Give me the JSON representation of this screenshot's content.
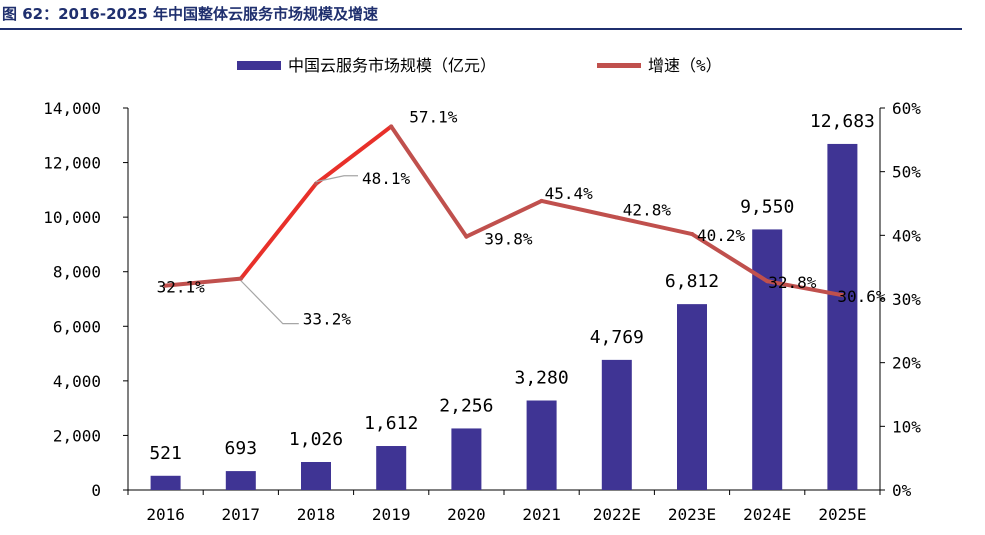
{
  "title": "图 62：2016-2025 年中国整体云服务市场规模及增速",
  "colors": {
    "bar": "#3f3494",
    "line": "#c0504d",
    "line_highlight": "#e8302a",
    "title": "#1f2f6e",
    "axis": "#000000",
    "leader": "#a6a6a6"
  },
  "chart_data": {
    "type": "bar+line",
    "categories": [
      "2016",
      "2017",
      "2018",
      "2019",
      "2020",
      "2021",
      "2022E",
      "2023E",
      "2024E",
      "2025E"
    ],
    "series": [
      {
        "name": "中国云服务市场规模（亿元）",
        "type": "bar",
        "axis": "left",
        "values": [
          521,
          693,
          1026,
          1612,
          2256,
          3280,
          4769,
          6812,
          9550,
          12683
        ],
        "labels": [
          "521",
          "693",
          "1,026",
          "1,612",
          "2,256",
          "3,280",
          "4,769",
          "6,812",
          "9,550",
          "12,683"
        ]
      },
      {
        "name": "增速（%）",
        "type": "line",
        "axis": "right",
        "values": [
          32.1,
          33.2,
          48.1,
          57.1,
          39.8,
          45.4,
          42.8,
          40.2,
          32.8,
          30.6
        ],
        "labels": [
          "32.1%",
          "33.2%",
          "48.1%",
          "57.1%",
          "39.8%",
          "45.4%",
          "42.8%",
          "40.2%",
          "32.8%",
          "30.6%"
        ]
      }
    ],
    "y_left": {
      "min": 0,
      "max": 14000,
      "ticks": [
        0,
        2000,
        4000,
        6000,
        8000,
        10000,
        12000,
        14000
      ],
      "tick_labels": [
        "0",
        "2,000",
        "4,000",
        "6,000",
        "8,000",
        "10,000",
        "12,000",
        "14,000"
      ]
    },
    "y_right": {
      "min": 0,
      "max": 60,
      "ticks": [
        0,
        10,
        20,
        30,
        40,
        50,
        60
      ],
      "tick_labels": [
        "0%",
        "10%",
        "20%",
        "30%",
        "40%",
        "50%",
        "60%"
      ]
    },
    "legend_position": "top-center"
  }
}
